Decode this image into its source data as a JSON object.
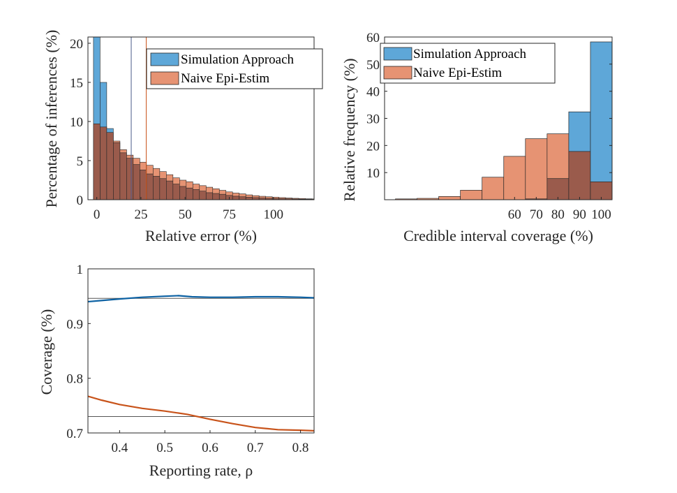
{
  "colors": {
    "sim": "#5ea7d8",
    "naive": "#e69373",
    "overlap": "#9a5b4c",
    "sim_line": "#0c61a3",
    "naive_line": "#c8531a",
    "axis": "#262626"
  },
  "chart_data": [
    {
      "type": "bar",
      "xlabel": "Relative error (%)",
      "ylabel": "Percentage of inferences (%)",
      "xlim": [
        -5,
        123
      ],
      "ylim": [
        0,
        20.8
      ],
      "xticks": [
        "0",
        "25",
        "50",
        "75",
        "100"
      ],
      "yticks": [
        "0",
        "5",
        "10",
        "15",
        "20"
      ],
      "bin_width": 3.75,
      "bin_start": -1.875,
      "series": [
        {
          "name": "Simulation Approach",
          "values": [
            20.8,
            15.0,
            9.1,
            7.3,
            6.0,
            5.3,
            4.5,
            3.8,
            3.3,
            3.0,
            2.7,
            2.4,
            2.0,
            1.7,
            1.5,
            1.3,
            1.1,
            0.9,
            0.8,
            0.7,
            0.55,
            0.45,
            0.38,
            0.32,
            0.27,
            0.22,
            0.18,
            0.15,
            0.13,
            0.11,
            0.09,
            0.07,
            0.06,
            0.05
          ]
        },
        {
          "name": "Naive Epi-Estim",
          "values": [
            9.7,
            9.3,
            8.6,
            7.5,
            6.4,
            5.7,
            5.3,
            4.8,
            4.4,
            4.0,
            3.6,
            3.2,
            2.8,
            2.5,
            2.3,
            2.0,
            1.8,
            1.6,
            1.4,
            1.2,
            1.0,
            0.85,
            0.75,
            0.62,
            0.52,
            0.44,
            0.38,
            0.32,
            0.27,
            0.22,
            0.18,
            0.15,
            0.12,
            0.1
          ]
        }
      ],
      "vlines": [
        {
          "series": "Simulation Approach",
          "x": 19.5
        },
        {
          "series": "Naive Epi-Estim",
          "x": 28
        }
      ],
      "legend": "top-right"
    },
    {
      "type": "bar",
      "xlabel": "Credible interval coverage (%)",
      "ylabel": "Relative frequency (%)",
      "xlim": [
        0,
        105
      ],
      "ylim": [
        0,
        60
      ],
      "xticks": [
        "60",
        "70",
        "80",
        "90",
        "100"
      ],
      "yticks": [
        "10",
        "20",
        "30",
        "40",
        "50",
        "60"
      ],
      "bin_width": 10,
      "bin_starts": [
        5,
        15,
        25,
        35,
        45,
        55,
        65,
        75,
        85,
        95
      ],
      "series": [
        {
          "name": "Simulation Approach",
          "values": [
            0,
            0,
            0,
            0,
            0,
            0,
            0.3,
            7.8,
            32.4,
            58.2
          ]
        },
        {
          "name": "Naive Epi-Estim",
          "values": [
            0.3,
            0.5,
            1.2,
            3.5,
            8.3,
            16.0,
            22.5,
            24.3,
            17.8,
            6.6
          ]
        }
      ],
      "legend": "top-left"
    },
    {
      "type": "line",
      "xlabel": "Reporting rate, ρ",
      "ylabel": "Coverage (%)",
      "xlim": [
        0.33,
        0.83
      ],
      "ylim": [
        0.7,
        1.0
      ],
      "xticks": [
        "0.4",
        "0.5",
        "0.6",
        "0.7",
        "0.8"
      ],
      "yticks": [
        "0.7",
        "0.8",
        "0.9",
        "1"
      ],
      "hlines": [
        0.946,
        0.73
      ],
      "series": [
        {
          "x": [
            0.33,
            0.36,
            0.4,
            0.45,
            0.5,
            0.53,
            0.56,
            0.6,
            0.65,
            0.7,
            0.75,
            0.8,
            0.83
          ],
          "values": [
            0.94,
            0.942,
            0.945,
            0.948,
            0.95,
            0.951,
            0.949,
            0.948,
            0.948,
            0.949,
            0.949,
            0.948,
            0.947
          ]
        },
        {
          "x": [
            0.33,
            0.36,
            0.4,
            0.45,
            0.5,
            0.55,
            0.6,
            0.65,
            0.7,
            0.75,
            0.8,
            0.83
          ],
          "values": [
            0.767,
            0.76,
            0.752,
            0.745,
            0.74,
            0.734,
            0.725,
            0.717,
            0.71,
            0.706,
            0.705,
            0.704
          ]
        }
      ]
    }
  ]
}
